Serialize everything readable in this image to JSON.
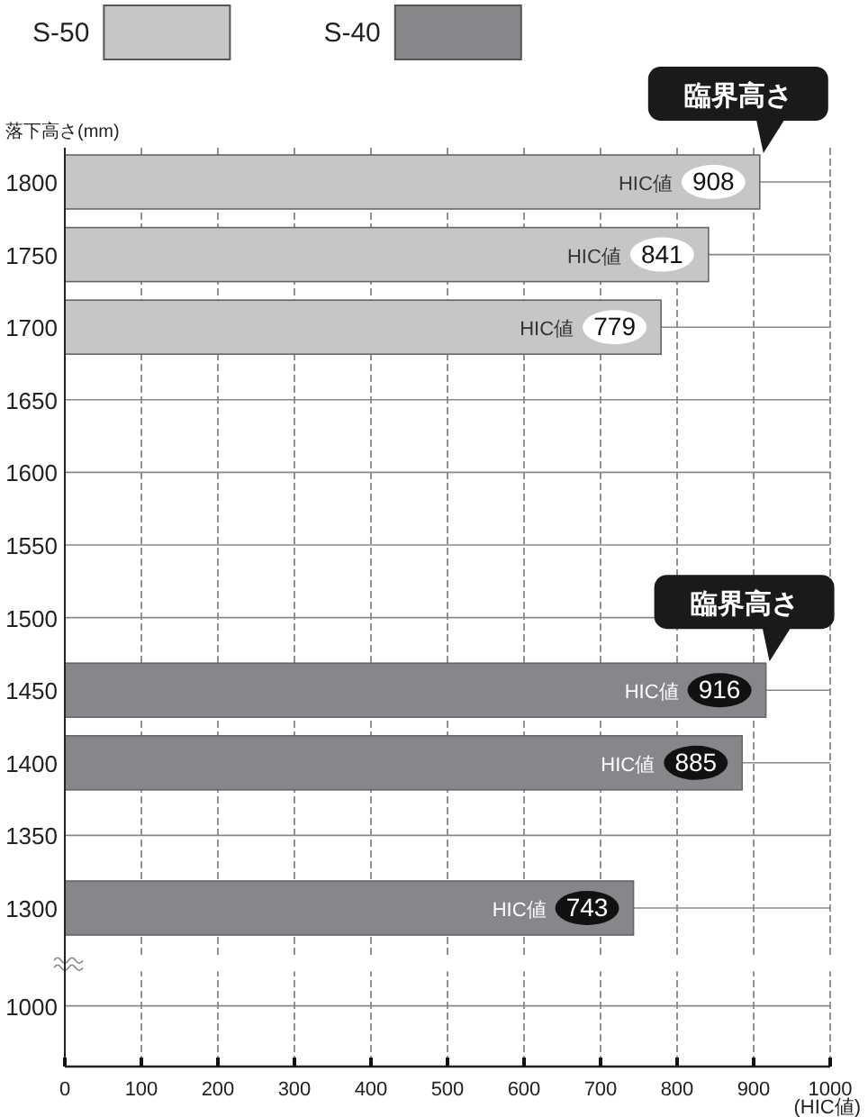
{
  "chart_data": {
    "type": "bar",
    "orientation": "horizontal",
    "xlabel": "(HIC値)",
    "ylabel": "落下高さ(mm)",
    "categories": [
      "1800",
      "1750",
      "1700",
      "1650",
      "1600",
      "1550",
      "1500",
      "1450",
      "1400",
      "1350",
      "1300",
      "1000"
    ],
    "series": [
      {
        "name": "S-50",
        "color": "#c6c6c8",
        "values": [
          908,
          841,
          779,
          null,
          null,
          null,
          null,
          null,
          null,
          null,
          null,
          null
        ],
        "value_labels": [
          "HIC値 908",
          "HIC値 841",
          "HIC値 779",
          null,
          null,
          null,
          null,
          null,
          null,
          null,
          null,
          null
        ]
      },
      {
        "name": "S-40",
        "color": "#87878b",
        "values": [
          null,
          null,
          null,
          null,
          null,
          null,
          null,
          916,
          885,
          null,
          743,
          null
        ],
        "value_labels": [
          null,
          null,
          null,
          null,
          null,
          null,
          null,
          "HIC値 916",
          "HIC値 885",
          null,
          "HIC値 743",
          null
        ]
      }
    ],
    "xlim": [
      0,
      1000
    ],
    "xticks": [
      0,
      100,
      200,
      300,
      400,
      500,
      600,
      700,
      800,
      900,
      1000
    ],
    "grid": true,
    "legend": "top",
    "annotations": [
      {
        "text": "臨界高さ",
        "x": 908,
        "y": "1800"
      },
      {
        "text": "臨界高さ",
        "x": 916,
        "y": "1450"
      }
    ]
  }
}
